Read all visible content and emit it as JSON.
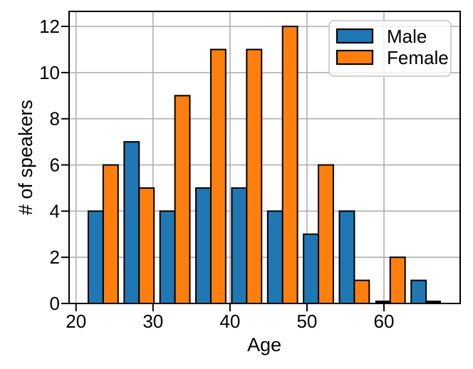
{
  "figure": {
    "background": "#ffffff"
  },
  "chart_data": {
    "type": "bar",
    "subtype": "grouped-histogram",
    "title": "",
    "xlabel": "Age",
    "ylabel": "# of speakers",
    "bin_edges": [
      21.2,
      25.86,
      30.52,
      35.18,
      39.84,
      44.5,
      49.16,
      53.82,
      58.48,
      63.14,
      67.8
    ],
    "series": [
      {
        "name": "Male",
        "color": "#1f77b4",
        "values": [
          4,
          7,
          4,
          5,
          5,
          4,
          3,
          4,
          0,
          1
        ]
      },
      {
        "name": "Female",
        "color": "#ff7f0e",
        "values": [
          6,
          5,
          9,
          11,
          11,
          12,
          6,
          1,
          2,
          0
        ]
      }
    ],
    "axes": {
      "xlim": [
        19.1,
        69.9
      ],
      "ylim": [
        0,
        12.65
      ],
      "xticks": [
        20,
        30,
        40,
        50,
        60
      ],
      "yticks": [
        0,
        2,
        4,
        6,
        8,
        10,
        12
      ],
      "grid": true,
      "grid_color": "#b0b0b0",
      "spine_color": "#000000",
      "bar_edge_color": "#000000",
      "text_color": "#000000"
    },
    "legend": {
      "position": "upper-right",
      "border_color": "#cccccc",
      "background": "rgba(255,255,255,0.8)",
      "swatch_edge_color": "#000000"
    }
  }
}
